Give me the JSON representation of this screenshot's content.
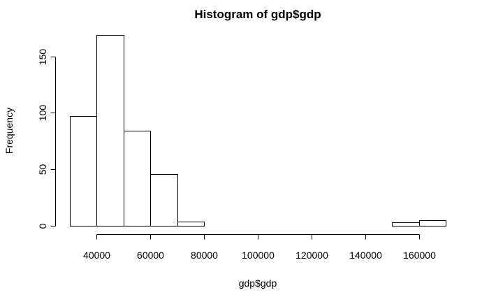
{
  "chart_data": {
    "type": "bar",
    "title": "Histogram of gdp$gdp",
    "xlabel": "gdp$gdp",
    "ylabel": "Frequency",
    "bins": [
      {
        "start": 30000,
        "end": 40000,
        "count": 97
      },
      {
        "start": 40000,
        "end": 50000,
        "count": 169
      },
      {
        "start": 50000,
        "end": 60000,
        "count": 84
      },
      {
        "start": 60000,
        "end": 70000,
        "count": 46
      },
      {
        "start": 70000,
        "end": 80000,
        "count": 4
      },
      {
        "start": 80000,
        "end": 90000,
        "count": 0
      },
      {
        "start": 90000,
        "end": 100000,
        "count": 0
      },
      {
        "start": 100000,
        "end": 110000,
        "count": 0
      },
      {
        "start": 110000,
        "end": 120000,
        "count": 0
      },
      {
        "start": 120000,
        "end": 130000,
        "count": 0
      },
      {
        "start": 130000,
        "end": 140000,
        "count": 0
      },
      {
        "start": 140000,
        "end": 150000,
        "count": 0
      },
      {
        "start": 150000,
        "end": 160000,
        "count": 3
      },
      {
        "start": 160000,
        "end": 170000,
        "count": 5
      }
    ],
    "xlim": [
      30000,
      170000
    ],
    "ylim": [
      0,
      169
    ],
    "x_ticks": [
      40000,
      60000,
      80000,
      100000,
      120000,
      140000,
      160000
    ],
    "x_tick_labels": [
      "40000",
      "60000",
      "80000",
      "100000",
      "120000",
      "140000",
      "160000"
    ],
    "y_ticks": [
      0,
      50,
      100,
      150
    ],
    "y_tick_labels": [
      "0",
      "50",
      "100",
      "150"
    ],
    "grid": false,
    "legend": "none",
    "colors": {
      "bar_fill": "#ffffff",
      "bar_stroke": "#000000"
    }
  }
}
